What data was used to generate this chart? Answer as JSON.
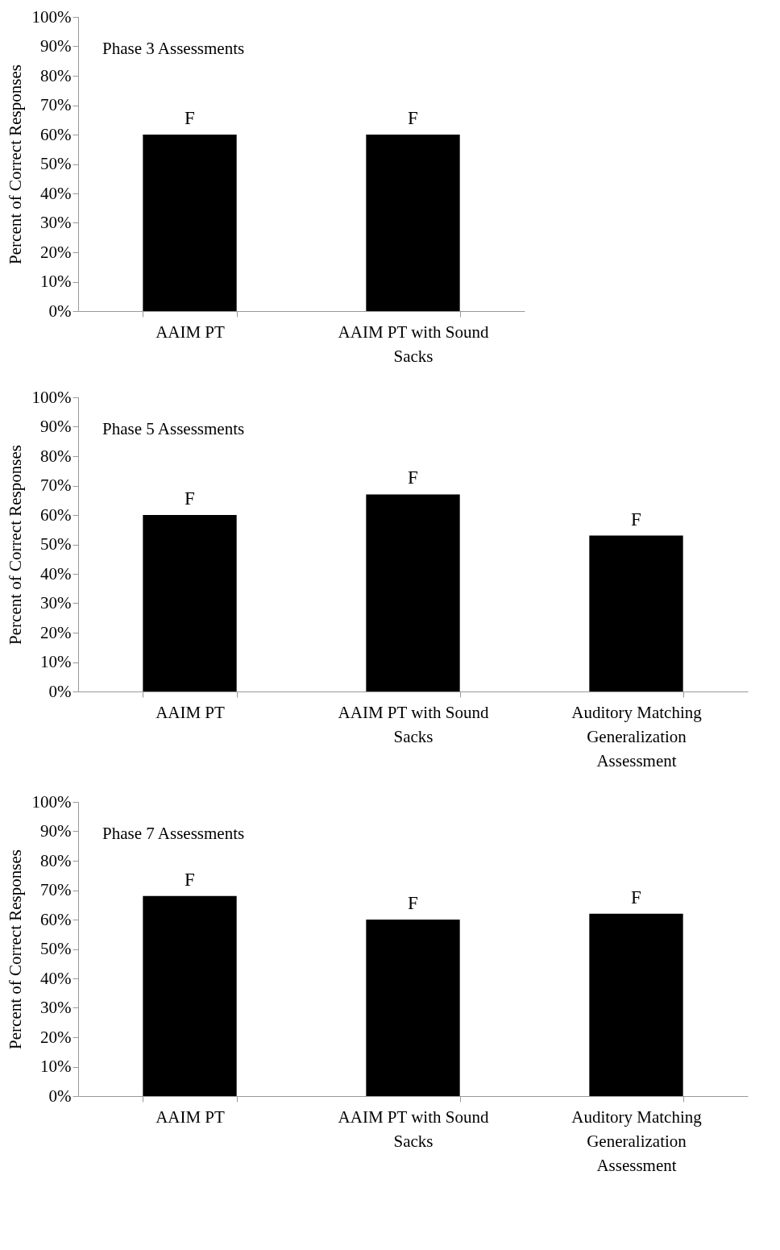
{
  "chart_data": [
    {
      "type": "bar",
      "annotations": [
        "Phase 3 Assessments"
      ],
      "ylabel": "Percent of Correct Responses",
      "categories": [
        "AAIM PT",
        "AAIM PT with Sound Sacks"
      ],
      "values": [
        60,
        60
      ],
      "value_labels": [
        "F",
        "F"
      ],
      "color": "#000000",
      "ylim": [
        0,
        100
      ],
      "yticks": [
        {
          "value": 0,
          "label": "0%"
        },
        {
          "value": 10,
          "label": "10%"
        },
        {
          "value": 20,
          "label": "20%"
        },
        {
          "value": 30,
          "label": "30%"
        },
        {
          "value": 40,
          "label": "40%"
        },
        {
          "value": 50,
          "label": "50%"
        },
        {
          "value": 60,
          "label": "60%"
        },
        {
          "value": 70,
          "label": "70%"
        },
        {
          "value": 80,
          "label": "80%"
        },
        {
          "value": 90,
          "label": "90%"
        },
        {
          "value": 100,
          "label": "100%"
        }
      ]
    },
    {
      "type": "bar",
      "annotations": [
        "Phase 5 Assessments"
      ],
      "ylabel": "Percent of Correct Responses",
      "categories": [
        "AAIM PT",
        "AAIM PT with Sound Sacks",
        "Auditory Matching Generalization Assessment"
      ],
      "values": [
        60,
        67,
        53
      ],
      "value_labels": [
        "F",
        "F",
        "F"
      ],
      "color": "#000000",
      "ylim": [
        0,
        100
      ],
      "yticks": [
        {
          "value": 0,
          "label": "0%"
        },
        {
          "value": 10,
          "label": "10%"
        },
        {
          "value": 20,
          "label": "20%"
        },
        {
          "value": 30,
          "label": "30%"
        },
        {
          "value": 40,
          "label": "40%"
        },
        {
          "value": 50,
          "label": "50%"
        },
        {
          "value": 60,
          "label": "60%"
        },
        {
          "value": 70,
          "label": "70%"
        },
        {
          "value": 80,
          "label": "80%"
        },
        {
          "value": 90,
          "label": "90%"
        },
        {
          "value": 100,
          "label": "100%"
        }
      ]
    },
    {
      "type": "bar",
      "annotations": [
        "Phase 7 Assessments"
      ],
      "ylabel": "Percent of Correct Responses",
      "categories": [
        "AAIM PT",
        "AAIM PT with Sound Sacks",
        "Auditory Matching Generalization Assessment"
      ],
      "values": [
        68,
        60,
        62
      ],
      "value_labels": [
        "F",
        "F",
        "F"
      ],
      "color": "#000000",
      "ylim": [
        0,
        100
      ],
      "yticks": [
        {
          "value": 0,
          "label": "0%"
        },
        {
          "value": 10,
          "label": "10%"
        },
        {
          "value": 20,
          "label": "20%"
        },
        {
          "value": 30,
          "label": "30%"
        },
        {
          "value": 40,
          "label": "40%"
        },
        {
          "value": 50,
          "label": "50%"
        },
        {
          "value": 60,
          "label": "60%"
        },
        {
          "value": 70,
          "label": "70%"
        },
        {
          "value": 80,
          "label": "80%"
        },
        {
          "value": 90,
          "label": "90%"
        },
        {
          "value": 100,
          "label": "100%"
        }
      ]
    }
  ]
}
